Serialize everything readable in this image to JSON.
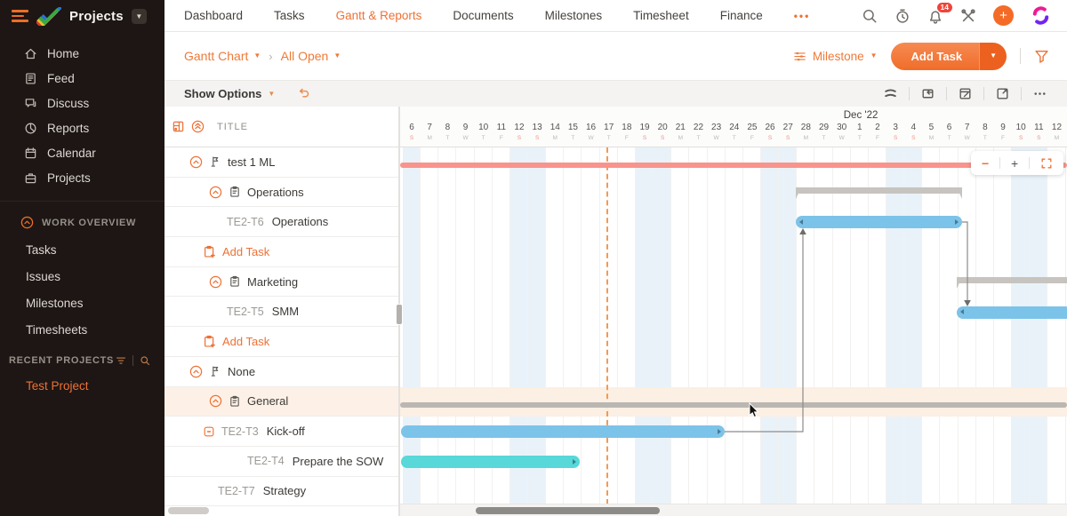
{
  "topbar": {
    "product": "Projects",
    "nav": [
      {
        "label": "Dashboard",
        "active": false
      },
      {
        "label": "Tasks",
        "active": false
      },
      {
        "label": "Gantt & Reports",
        "active": true
      },
      {
        "label": "Documents",
        "active": false
      },
      {
        "label": "Milestones",
        "active": false
      },
      {
        "label": "Timesheet",
        "active": false
      },
      {
        "label": "Finance",
        "active": false
      }
    ],
    "notification_count": "14"
  },
  "sidebar": {
    "menu": [
      {
        "label": "Home",
        "icon": "home-icon"
      },
      {
        "label": "Feed",
        "icon": "feed-icon"
      },
      {
        "label": "Discuss",
        "icon": "discuss-icon"
      },
      {
        "label": "Reports",
        "icon": "reports-icon"
      },
      {
        "label": "Calendar",
        "icon": "calendar-icon"
      },
      {
        "label": "Projects",
        "icon": "projects-icon"
      }
    ],
    "work_overview": {
      "title": "WORK OVERVIEW",
      "items": [
        "Tasks",
        "Issues",
        "Milestones",
        "Timesheets"
      ]
    },
    "recent_projects": {
      "title": "RECENT PROJECTS",
      "items": [
        {
          "label": "Test Project"
        }
      ]
    }
  },
  "breadcrumb": {
    "view": "Gantt Chart",
    "filter": "All Open"
  },
  "header_actions": {
    "group_by": "Milestone",
    "add_task": "Add Task"
  },
  "options_bar": {
    "show_options": "Show Options"
  },
  "task_table": {
    "title": "TITLE",
    "rows": [
      {
        "type": "milestone",
        "label": "test 1 ML"
      },
      {
        "type": "tasklist",
        "label": "Operations"
      },
      {
        "type": "task",
        "indent": 3,
        "prefix": "TE2-T6",
        "label": "Operations"
      },
      {
        "type": "addtask",
        "label": "Add Task"
      },
      {
        "type": "tasklist",
        "label": "Marketing"
      },
      {
        "type": "task",
        "indent": 3,
        "prefix": "TE2-T5",
        "label": "SMM"
      },
      {
        "type": "addtask",
        "label": "Add Task"
      },
      {
        "type": "milestone",
        "label": "None"
      },
      {
        "type": "tasklist",
        "label": "General",
        "highlight": true
      },
      {
        "type": "task",
        "indent": 3,
        "icon": true,
        "prefix": "TE2-T3",
        "label": "Kick-off"
      },
      {
        "type": "task",
        "indent": 4,
        "prefix": "TE2-T4",
        "label": "Prepare the SOW"
      },
      {
        "type": "task",
        "indent": 2,
        "prefix": "TE2-T7",
        "label": "Strategy"
      }
    ]
  },
  "timeline": {
    "month_label": "Dec '22",
    "month_start_index": 25,
    "days": [
      {
        "n": "6",
        "d": "S",
        "we": true
      },
      {
        "n": "7",
        "d": "M"
      },
      {
        "n": "8",
        "d": "T"
      },
      {
        "n": "9",
        "d": "W"
      },
      {
        "n": "10",
        "d": "T"
      },
      {
        "n": "11",
        "d": "F"
      },
      {
        "n": "12",
        "d": "S",
        "we": true
      },
      {
        "n": "13",
        "d": "S",
        "we": true
      },
      {
        "n": "14",
        "d": "M"
      },
      {
        "n": "15",
        "d": "T"
      },
      {
        "n": "16",
        "d": "W"
      },
      {
        "n": "17",
        "d": "T"
      },
      {
        "n": "18",
        "d": "F"
      },
      {
        "n": "19",
        "d": "S",
        "we": true
      },
      {
        "n": "20",
        "d": "S",
        "we": true
      },
      {
        "n": "21",
        "d": "M"
      },
      {
        "n": "22",
        "d": "T"
      },
      {
        "n": "23",
        "d": "W"
      },
      {
        "n": "24",
        "d": "T"
      },
      {
        "n": "25",
        "d": "F"
      },
      {
        "n": "26",
        "d": "S",
        "we": true
      },
      {
        "n": "27",
        "d": "S",
        "we": true
      },
      {
        "n": "28",
        "d": "M"
      },
      {
        "n": "29",
        "d": "T"
      },
      {
        "n": "30",
        "d": "W"
      },
      {
        "n": "1",
        "d": "T"
      },
      {
        "n": "2",
        "d": "F"
      },
      {
        "n": "3",
        "d": "S",
        "we": true
      },
      {
        "n": "4",
        "d": "S",
        "we": true
      },
      {
        "n": "5",
        "d": "M"
      },
      {
        "n": "6",
        "d": "T"
      },
      {
        "n": "7",
        "d": "W"
      },
      {
        "n": "8",
        "d": "T"
      },
      {
        "n": "9",
        "d": "F"
      },
      {
        "n": "10",
        "d": "S",
        "we": true
      },
      {
        "n": "11",
        "d": "S",
        "we": true
      },
      {
        "n": "12",
        "d": "M"
      }
    ]
  },
  "gantt": {
    "today_day": 11.36,
    "highlight_row": 8,
    "colors": {
      "blue": "#7cc3e9",
      "cyan": "#58d8d8",
      "red": "#f8948c",
      "gray_line": "#bab7b3",
      "bracket": "#c7c4c0",
      "accent": "#ee7135"
    },
    "bars": [
      {
        "id": "test-1-ml-summary",
        "row": 0,
        "kind": "summary-line",
        "color": "#f8948c",
        "full": true
      },
      {
        "id": "operations-group",
        "row": 1,
        "kind": "bracket",
        "start": 21.95,
        "end": 31.2
      },
      {
        "id": "operations-task",
        "row": 2,
        "kind": "task-bar",
        "color": "#7cc3e9",
        "start": 21.95,
        "end": 31.2,
        "handles": "both"
      },
      {
        "id": "marketing-group",
        "row": 4,
        "kind": "bracket",
        "start": 30.9,
        "end": 37.6,
        "clip_right": true
      },
      {
        "id": "smm-task",
        "row": 5,
        "kind": "task-bar",
        "color": "#7cc3e9",
        "start": 30.9,
        "end": 37.6,
        "handles": "left"
      },
      {
        "id": "general-summary",
        "row": 8,
        "kind": "summary-line",
        "color": "#bab7b3",
        "full": true
      },
      {
        "id": "kickoff-task",
        "row": 9,
        "kind": "task-bar",
        "color": "#7cc3e9",
        "start": -0.1,
        "end": 17.95,
        "handles": "right"
      },
      {
        "id": "prepare-sow-task",
        "row": 10,
        "kind": "task-bar",
        "color": "#58d8d8",
        "start": -0.1,
        "end": 9.9,
        "handles": "right"
      }
    ],
    "dependencies": [
      {
        "from": "TE2-T3 Kick-off",
        "to": "TE2-T6 Operations",
        "points": [
          [
            365,
            320
          ],
          [
            453,
            320
          ],
          [
            453,
            98
          ]
        ],
        "tip": [
          453,
          91
        ],
        "dir": "up"
      },
      {
        "from": "TE2-T6 Operations",
        "to": "TE2-T5 SMM",
        "points": [
          [
            632,
            84
          ],
          [
            638,
            84
          ],
          [
            638,
            172
          ]
        ],
        "tip": [
          638,
          179
        ],
        "dir": "down"
      }
    ]
  },
  "zoom_control": {
    "zoom_out": "−",
    "zoom_in": "+"
  }
}
